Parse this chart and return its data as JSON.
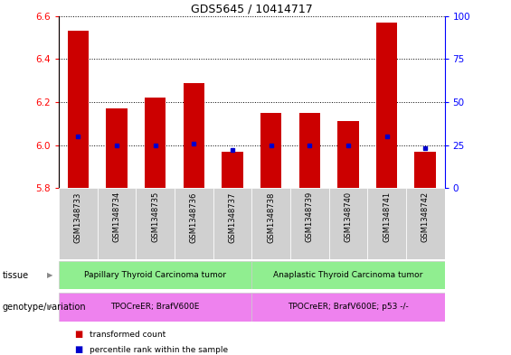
{
  "title": "GDS5645 / 10414717",
  "samples": [
    "GSM1348733",
    "GSM1348734",
    "GSM1348735",
    "GSM1348736",
    "GSM1348737",
    "GSM1348738",
    "GSM1348739",
    "GSM1348740",
    "GSM1348741",
    "GSM1348742"
  ],
  "transformed_count": [
    6.53,
    6.17,
    6.22,
    6.29,
    5.97,
    6.15,
    6.15,
    6.11,
    6.57,
    5.97
  ],
  "percentile_rank": [
    30,
    25,
    25,
    26,
    22,
    25,
    25,
    25,
    30,
    23
  ],
  "ylim": [
    5.8,
    6.6
  ],
  "yticks": [
    5.8,
    6.0,
    6.2,
    6.4,
    6.6
  ],
  "right_yticks": [
    0,
    25,
    50,
    75,
    100
  ],
  "bar_color": "#cc0000",
  "percentile_color": "#0000cc",
  "tissue_groups": [
    {
      "label": "Papillary Thyroid Carcinoma tumor",
      "start": 0,
      "end": 5,
      "color": "#90ee90"
    },
    {
      "label": "Anaplastic Thyroid Carcinoma tumor",
      "start": 5,
      "end": 10,
      "color": "#90ee90"
    }
  ],
  "genotype_groups": [
    {
      "label": "TPOCreER; BrafV600E",
      "start": 0,
      "end": 5,
      "color": "#ee82ee"
    },
    {
      "label": "TPOCreER; BrafV600E; p53 -/-",
      "start": 5,
      "end": 10,
      "color": "#ee82ee"
    }
  ],
  "tissue_label": "tissue",
  "genotype_label": "genotype/variation",
  "legend_items": [
    {
      "label": "transformed count",
      "color": "#cc0000"
    },
    {
      "label": "percentile rank within the sample",
      "color": "#0000cc"
    }
  ]
}
